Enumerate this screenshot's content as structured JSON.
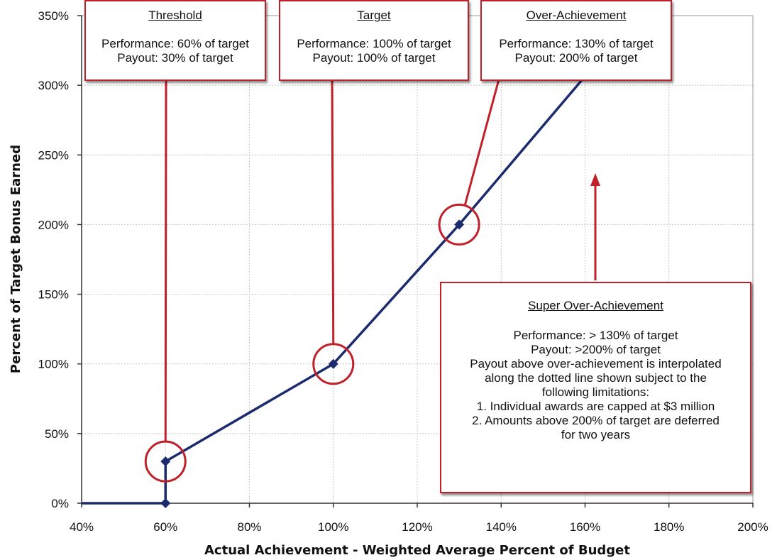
{
  "chart_data": {
    "type": "line",
    "xlabel": "Actual Achievement - Weighted Average Percent of Budget",
    "ylabel": "Percent of Target Bonus Earned",
    "xlim": [
      40,
      200
    ],
    "ylim": [
      0,
      350
    ],
    "xticks": [
      "40%",
      "60%",
      "80%",
      "100%",
      "120%",
      "140%",
      "160%",
      "180%",
      "200%"
    ],
    "yticks": [
      "0%",
      "50%",
      "100%",
      "150%",
      "200%",
      "250%",
      "300%",
      "350%"
    ],
    "grid": true,
    "series": [
      {
        "points": [
          [
            40,
            0
          ],
          [
            60,
            0
          ],
          [
            60,
            30
          ],
          [
            100,
            100
          ],
          [
            130,
            200
          ],
          [
            161,
            310
          ]
        ],
        "markers": [
          [
            60,
            0
          ],
          [
            60,
            30
          ],
          [
            100,
            100
          ],
          [
            130,
            200
          ]
        ],
        "color": "#1c2a6e"
      }
    ],
    "highlighted_points": [
      [
        60,
        30
      ],
      [
        100,
        100
      ],
      [
        130,
        200
      ]
    ],
    "annotation_color": "#c0202a"
  },
  "annotations": {
    "threshold": {
      "title": "Threshold",
      "lines": [
        "Performance: 60% of target",
        "Payout: 30% of target"
      ]
    },
    "target": {
      "title": "Target",
      "lines": [
        "Performance: 100% of target",
        "Payout: 100% of target"
      ]
    },
    "over": {
      "title": "Over-Achievement",
      "lines": [
        "Performance: 130% of target",
        "Payout: 200% of target"
      ]
    },
    "super": {
      "title": "Super Over-Achievement",
      "lines": [
        "Performance: > 130% of target",
        "Payout: >200% of target",
        "Payout above over-achievement is interpolated",
        "along the dotted line shown subject to the",
        "following limitations:",
        "1. Individual awards are capped at $3 million",
        "2. Amounts above 200% of target are deferred",
        "for two years"
      ]
    }
  }
}
